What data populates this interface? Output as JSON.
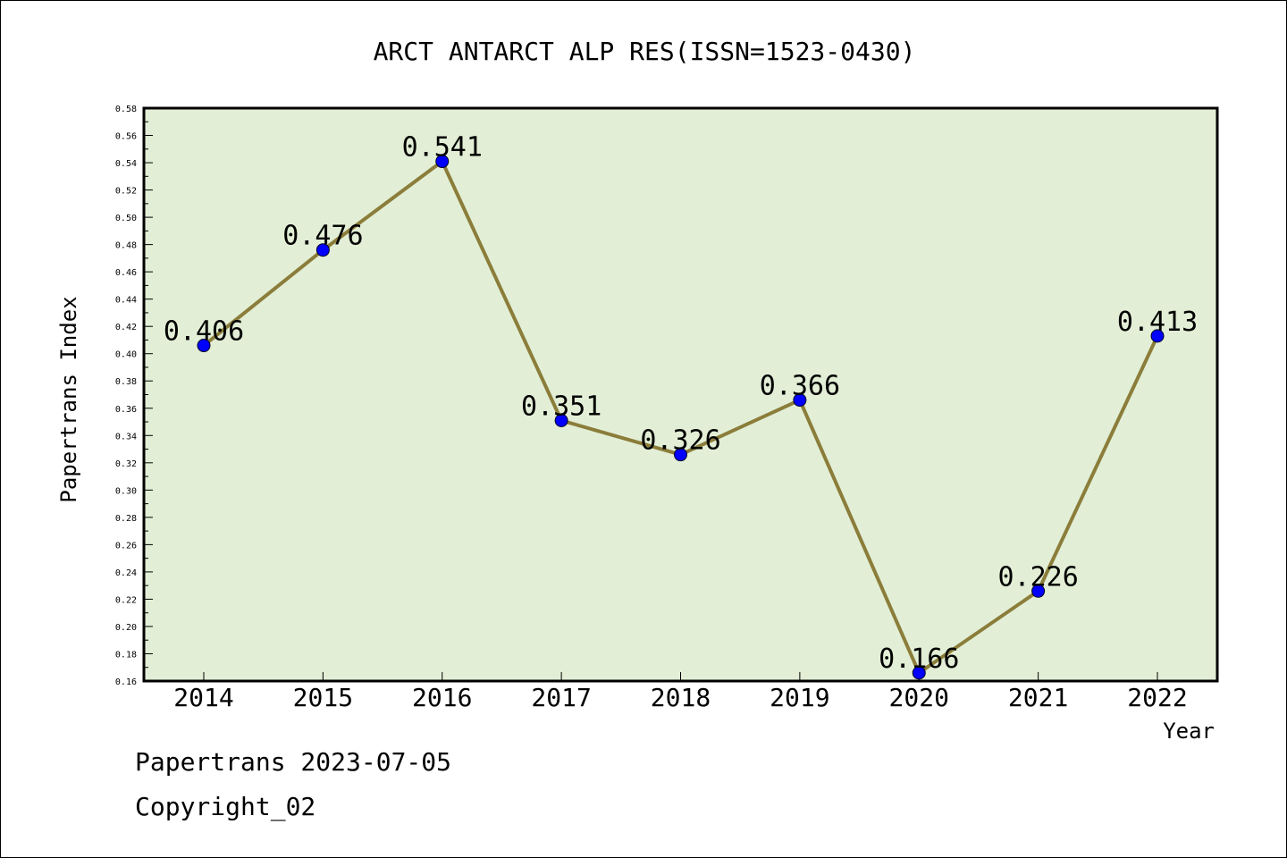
{
  "chart_data": {
    "type": "line",
    "title": "ARCT ANTARCT ALP RES(ISSN=1523-0430)",
    "xlabel": "Year",
    "ylabel": "Papertrans Index",
    "categories": [
      "2014",
      "2015",
      "2016",
      "2017",
      "2018",
      "2019",
      "2020",
      "2021",
      "2022"
    ],
    "values": [
      0.406,
      0.476,
      0.541,
      0.351,
      0.326,
      0.366,
      0.166,
      0.226,
      0.413
    ],
    "data_labels": [
      "0.406",
      "0.476",
      "0.541",
      "0.351",
      "0.326",
      "0.366",
      "0.166",
      "0.226",
      "0.413"
    ],
    "ylim": [
      0.16,
      0.58
    ],
    "yticks": [
      "0.16",
      "0.18",
      "0.20",
      "0.22",
      "0.24",
      "0.26",
      "0.28",
      "0.30",
      "0.32",
      "0.34",
      "0.36",
      "0.38",
      "0.40",
      "0.42",
      "0.44",
      "0.46",
      "0.48",
      "0.50",
      "0.52",
      "0.54",
      "0.56",
      "0.58"
    ],
    "grid": false,
    "colors": {
      "plot_background": "#e2efd6",
      "line": "#8b7d3a",
      "marker": "#0000ff"
    }
  },
  "footer": {
    "line1": "Papertrans 2023-07-05",
    "line2": "Copyright_02"
  }
}
